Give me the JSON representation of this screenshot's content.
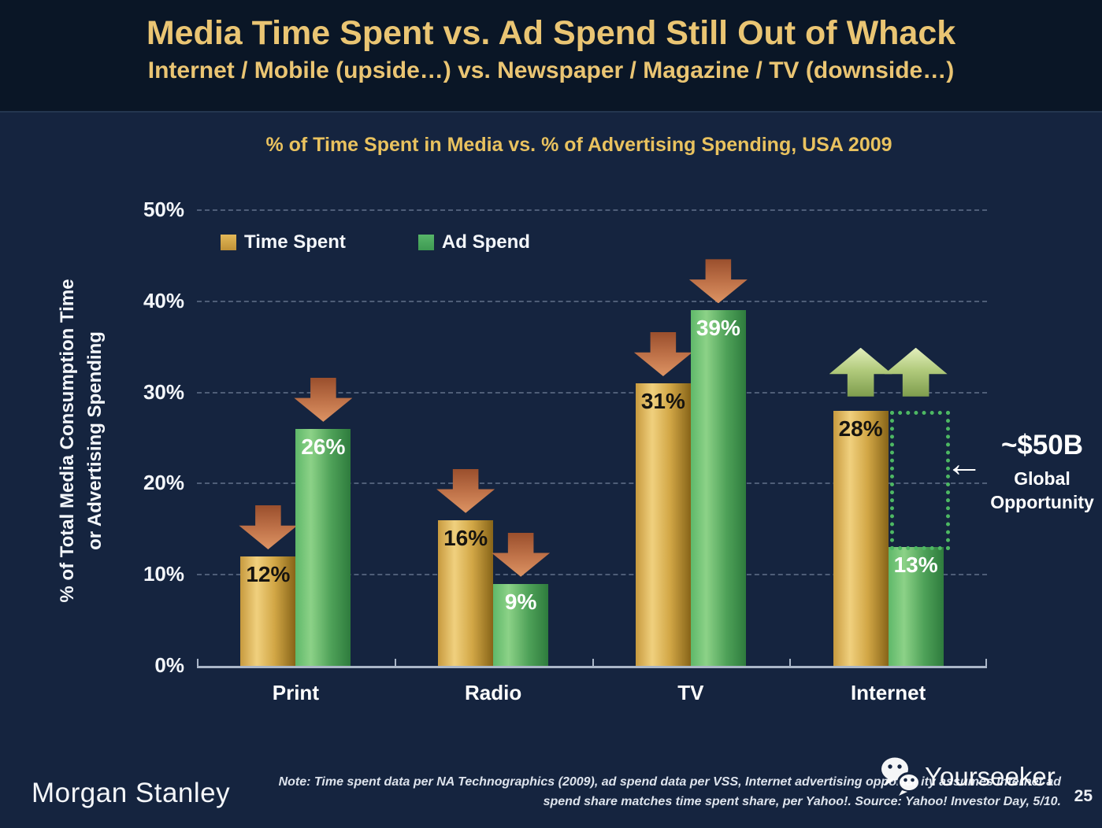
{
  "slide": {
    "title": "Media Time Spent vs. Ad Spend Still Out of Whack",
    "subtitle": "Internet / Mobile (upside…) vs. Newspaper / Magazine / TV (downside…)",
    "page_number": "25"
  },
  "chart_data": {
    "type": "bar",
    "title": "% of Time Spent in Media vs. % of Advertising Spending, USA 2009",
    "categories": [
      "Print",
      "Radio",
      "TV",
      "Internet"
    ],
    "series": [
      {
        "name": "Time Spent",
        "values": [
          12,
          16,
          31,
          28
        ],
        "labels": [
          "12%",
          "16%",
          "31%",
          "28%"
        ],
        "color": "#d9ac4b"
      },
      {
        "name": "Ad Spend",
        "values": [
          26,
          9,
          39,
          13
        ],
        "labels": [
          "26%",
          "9%",
          "39%",
          "13%"
        ],
        "color": "#4cae62"
      }
    ],
    "ylabel": [
      "% of Total Media Consumption Time",
      "or Advertising Spending"
    ],
    "ylim": [
      0,
      50
    ],
    "yticks": [
      "0%",
      "10%",
      "20%",
      "30%",
      "40%",
      "50%"
    ],
    "grid": "horizontal-dashed",
    "legend_position": "top-left-inside",
    "category_trends": [
      "down",
      "down",
      "down",
      "up"
    ],
    "annotation": {
      "headline": "~$50B",
      "lines": [
        "Global",
        "Opportunity"
      ],
      "pointer": "←",
      "box_category": "Internet",
      "box_from": 13,
      "box_to": 28
    }
  },
  "footer": {
    "brand": "Morgan Stanley",
    "note_line1": "Note: Time spent data per NA Technographics (2009), ad spend data per VSS, Internet advertising opportunity assumes Internet ad",
    "note_line2": "spend share matches time spent share, per Yahoo!. Source: Yahoo! Investor Day, 5/10.",
    "watermark": "Yourseeker"
  },
  "colors": {
    "background": "#15243f",
    "header_band": "#0a1626",
    "gold_text": "#eac573",
    "bar_gold": "#d9ac4b",
    "bar_green": "#4cae62",
    "down_arrow_red": "#c1744a",
    "up_arrow_green": "#b2cb7d",
    "opportunity_outline": "#4db863"
  }
}
